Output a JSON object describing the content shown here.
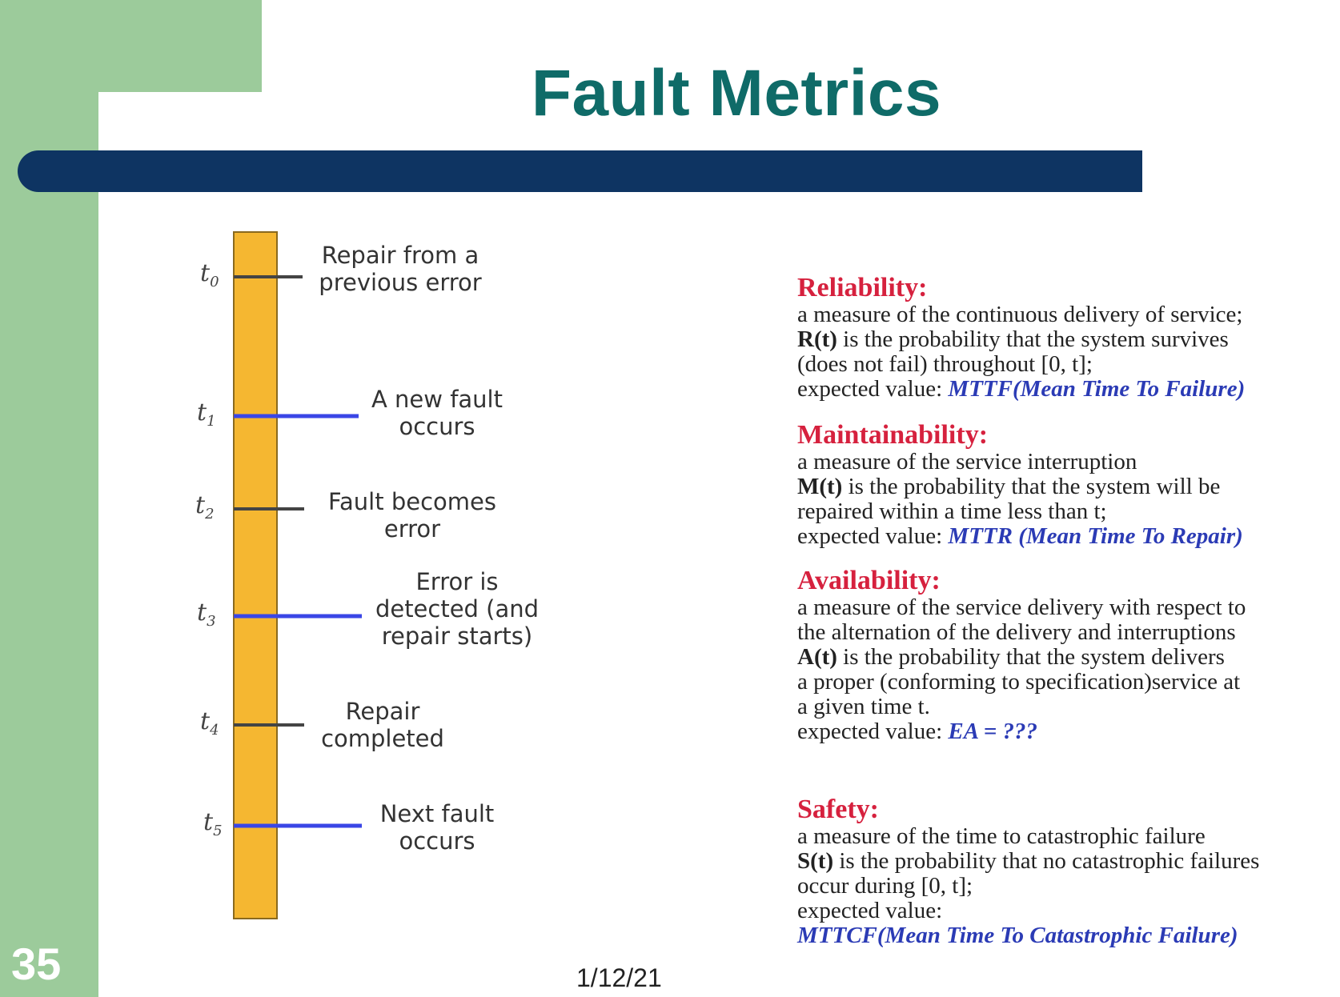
{
  "slide": {
    "title": "Fault Metrics",
    "number": "35",
    "date": "1/12/21"
  },
  "timeline": {
    "ticks": [
      {
        "t": "t",
        "sub": "0",
        "event": [
          "Repair from a",
          "previous error"
        ],
        "line_color": "#444444"
      },
      {
        "t": "t",
        "sub": "1",
        "event": [
          "A new fault",
          "occurs"
        ],
        "line_color": "#3a46e6"
      },
      {
        "t": "t",
        "sub": "2",
        "event": [
          "Fault becomes",
          "error"
        ],
        "line_color": "#444444"
      },
      {
        "t": "t",
        "sub": "3",
        "event": [
          "Error is",
          "detected (and",
          "repair starts)"
        ],
        "line_color": "#3a46e6"
      },
      {
        "t": "t",
        "sub": "4",
        "event": [
          "Repair",
          "completed"
        ],
        "line_color": "#444444"
      },
      {
        "t": "t",
        "sub": "5",
        "event": [
          "Next fault",
          "occurs"
        ],
        "line_color": "#3a46e6"
      }
    ],
    "bar_color": "#f5b731"
  },
  "metrics": {
    "reliability": {
      "heading": "Reliability:",
      "l1": "a measure of the continuous delivery of service;",
      "sym": "R(t)",
      "l2": " is the probability that the system survives",
      "l3": "(does not fail) throughout [0, t];",
      "ev_label": "expected value: ",
      "ev": "MTTF(Mean Time To Failure)"
    },
    "maintainability": {
      "heading": "Maintainability:",
      "l1": "a measure of the service  interruption",
      "sym": "M(t)",
      "l2": " is the probability that the system will be",
      "l3": "repaired within a time less than t;",
      "ev_label": "expected value:  ",
      "ev": "MTTR (Mean Time To Repair)"
    },
    "availability": {
      "heading": "Availability:",
      "l1": "a measure of the service delivery with respect to",
      "l1b": "the alternation of the delivery and interruptions",
      "sym": "A(t)",
      "l2": " is the probability that the system delivers",
      "l3": "a proper (conforming  to specification)service at",
      "l4": "a given time t.",
      "ev_label": "expected value: ",
      "ev": "EA = ???"
    },
    "safety": {
      "heading": "Safety:",
      "l1": "a measure of the time to catastrophic failure",
      "sym": "S(t)",
      "l2": " is the probability that no catastrophic failures",
      "l3": "occur during [0, t];",
      "ev_label": "expected value:",
      "ev": "MTTCF(Mean Time To Catastrophic Failure)"
    }
  }
}
